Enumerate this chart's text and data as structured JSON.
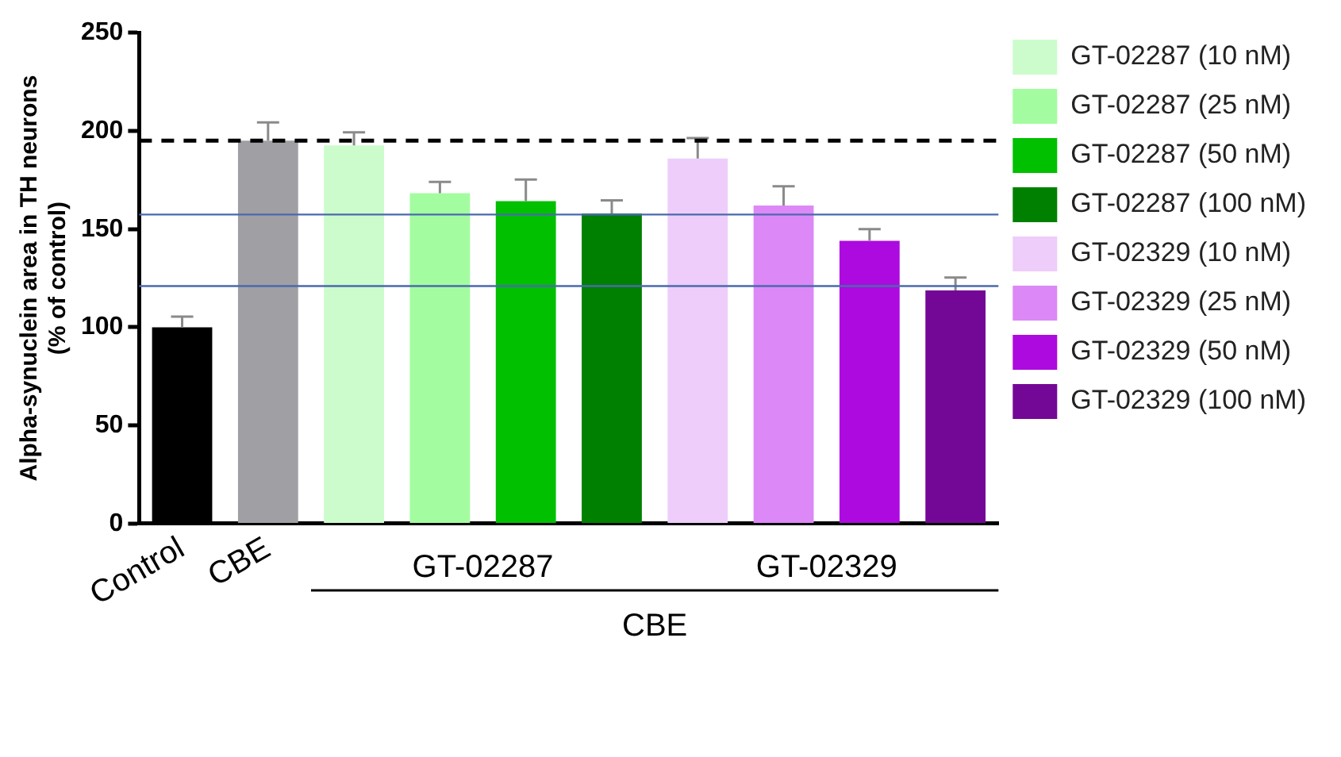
{
  "chart_data": {
    "type": "bar",
    "ylabel": "Alpha-synuclein area in TH neurons\n(% of control)",
    "categories": [
      "Control",
      "CBE",
      null,
      null,
      null,
      null,
      null,
      null,
      null,
      null
    ],
    "series": [
      {
        "colors": [
          "#000000",
          "#a09fa3",
          null,
          null,
          null,
          null,
          null,
          null,
          null,
          null
        ],
        "values": [
          100,
          195,
          null,
          null,
          null,
          null,
          null,
          null,
          null,
          null
        ],
        "errors": [
          [
            100,
            105.4
          ],
          [
            195,
            204.3
          ],
          null,
          null,
          null,
          null,
          null,
          null,
          null,
          null
        ]
      },
      {
        "name": "GT-02287 (10 nM)",
        "color": "#ccfccc",
        "values": [
          null,
          null,
          192.6,
          null,
          null,
          null,
          null,
          null,
          null,
          null
        ],
        "errors": [
          null,
          null,
          [
            192.6,
            199.3
          ],
          null,
          null,
          null,
          null,
          null,
          null,
          null
        ]
      },
      {
        "name": "GT-02287 (25 nM)",
        "color": "#a3fda0",
        "values": [
          null,
          null,
          null,
          168.3,
          null,
          null,
          null,
          null,
          null,
          null
        ],
        "errors": [
          null,
          null,
          null,
          [
            168.3,
            174
          ],
          null,
          null,
          null,
          null,
          null,
          null
        ]
      },
      {
        "name": "GT-02287 (50 nM)",
        "color": "#00c000",
        "values": [
          null,
          null,
          null,
          null,
          164.2,
          null,
          null,
          null,
          null,
          null
        ],
        "errors": [
          null,
          null,
          null,
          null,
          [
            164.2,
            175.2
          ],
          null,
          null,
          null,
          null,
          null
        ]
      },
      {
        "name": "GT-02287 (100 nM)",
        "color": "#008000",
        "values": [
          null,
          null,
          null,
          null,
          null,
          158,
          null,
          null,
          null,
          null
        ],
        "errors": [
          null,
          null,
          null,
          null,
          null,
          [
            158,
            164.6
          ],
          null,
          null,
          null,
          null
        ]
      },
      {
        "name": "GT-02329 (10 nM)",
        "color": "#eecdfa",
        "values": [
          null,
          null,
          null,
          null,
          null,
          null,
          185.9,
          null,
          null,
          null
        ],
        "errors": [
          null,
          null,
          null,
          null,
          null,
          null,
          [
            185.9,
            196.3
          ],
          null,
          null,
          null
        ]
      },
      {
        "name": "GT-02329 (25 nM)",
        "color": "#dd88f7",
        "values": [
          null,
          null,
          null,
          null,
          null,
          null,
          null,
          162,
          null,
          null
        ],
        "errors": [
          null,
          null,
          null,
          null,
          null,
          null,
          null,
          [
            162,
            171.8
          ],
          null,
          null
        ]
      },
      {
        "name": "GT-02329 (50 nM)",
        "color": "#ad0ae0",
        "values": [
          null,
          null,
          null,
          null,
          null,
          null,
          null,
          null,
          144,
          null
        ],
        "errors": [
          null,
          null,
          null,
          null,
          null,
          null,
          null,
          null,
          [
            144,
            150
          ],
          null
        ]
      },
      {
        "name": "GT-02329 (100 nM)",
        "color": "#740896",
        "values": [
          null,
          null,
          null,
          null,
          null,
          null,
          null,
          null,
          null,
          118.8
        ],
        "errors": [
          null,
          null,
          null,
          null,
          null,
          null,
          null,
          null,
          null,
          [
            118.8,
            125.3
          ]
        ]
      }
    ],
    "ylim": [
      0,
      250
    ],
    "yticks": [
      0,
      50,
      100,
      150,
      200,
      250
    ],
    "grid": false,
    "legend": "right",
    "ref_lines": [
      {
        "axis": "y",
        "value": 195,
        "color": "#000000",
        "line_style": "dashed"
      },
      {
        "axis": "y",
        "value": 157.4,
        "color": "#4a6aae",
        "line_style": "solid"
      },
      {
        "axis": "y",
        "value": 121,
        "color": "#4a6aae",
        "line_style": "solid"
      }
    ],
    "annotations": [
      "GT-02287",
      "GT-02329",
      "CBE"
    ]
  }
}
